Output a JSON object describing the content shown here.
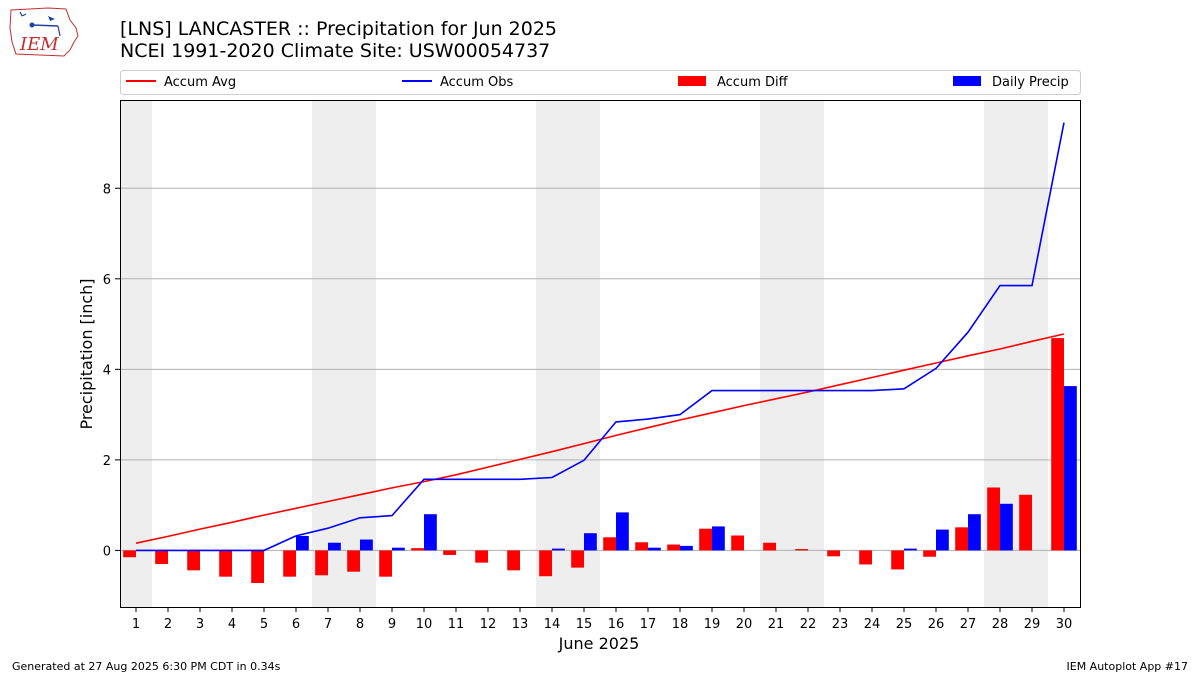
{
  "header": {
    "title_line1": "[LNS] LANCASTER :: Precipitation for Jun 2025",
    "title_line2": "NCEI 1991-2020 Climate Site: USW00054737",
    "logo_text": "IEM"
  },
  "footer": {
    "left": "Generated at 27 Aug 2025 6:30 PM CDT in 0.34s",
    "right": "IEM Autoplot App #17"
  },
  "colors": {
    "avg": "#ff0000",
    "obs": "#0000ff",
    "diff": "#ff0000",
    "daily": "#0000ff",
    "weekend": "#eeeeee",
    "grid": "#b0b0b0"
  },
  "chart_data": {
    "type": "bar",
    "xlabel": "June 2025",
    "ylabel": "Precipitation [inch]",
    "ylim": [
      -1.25,
      9.95
    ],
    "yticks": [
      0,
      2,
      4,
      6,
      8
    ],
    "grid": "horizontal",
    "legend_position": "top, above plot",
    "days": [
      1,
      2,
      3,
      4,
      5,
      6,
      7,
      8,
      9,
      10,
      11,
      12,
      13,
      14,
      15,
      16,
      17,
      18,
      19,
      20,
      21,
      22,
      23,
      24,
      25,
      26,
      27,
      28,
      29,
      30
    ],
    "weekend_days": [
      1,
      7,
      8,
      14,
      15,
      21,
      22,
      28,
      29
    ],
    "series": [
      {
        "name": "Accum Avg",
        "kind": "line",
        "values": [
          0.16,
          0.31,
          0.47,
          0.62,
          0.78,
          0.93,
          1.08,
          1.23,
          1.38,
          1.52,
          1.67,
          1.84,
          2.01,
          2.18,
          2.36,
          2.54,
          2.71,
          2.88,
          3.04,
          3.2,
          3.35,
          3.5,
          3.66,
          3.82,
          3.98,
          4.14,
          4.3,
          4.45,
          4.62,
          4.78
        ]
      },
      {
        "name": "Accum Obs",
        "kind": "line",
        "values": [
          0.0,
          0.0,
          0.0,
          0.0,
          0.0,
          0.32,
          0.49,
          0.72,
          0.77,
          1.57,
          1.57,
          1.57,
          1.57,
          1.61,
          1.99,
          2.84,
          2.9,
          3.0,
          3.53,
          3.53,
          3.53,
          3.53,
          3.53,
          3.53,
          3.57,
          4.02,
          4.82,
          5.85,
          5.85,
          9.45
        ]
      },
      {
        "name": "Accum Diff",
        "kind": "bar",
        "values": [
          -0.15,
          -0.3,
          -0.44,
          -0.58,
          -0.72,
          -0.58,
          -0.55,
          -0.47,
          -0.58,
          0.05,
          -0.1,
          -0.27,
          -0.44,
          -0.57,
          -0.38,
          0.29,
          0.18,
          0.13,
          0.48,
          0.33,
          0.17,
          0.03,
          -0.13,
          -0.31,
          -0.42,
          -0.14,
          0.51,
          1.39,
          1.23,
          4.69
        ]
      },
      {
        "name": "Daily Precip",
        "kind": "bar",
        "values": [
          0.0,
          0.0,
          0.0,
          0.0,
          0.0,
          0.32,
          0.17,
          0.24,
          0.06,
          0.8,
          0.0,
          0.0,
          0.0,
          0.04,
          0.38,
          0.84,
          0.06,
          0.1,
          0.53,
          0.0,
          0.0,
          0.0,
          0.0,
          0.0,
          0.04,
          0.46,
          0.8,
          1.03,
          0.0,
          3.63
        ]
      }
    ]
  }
}
